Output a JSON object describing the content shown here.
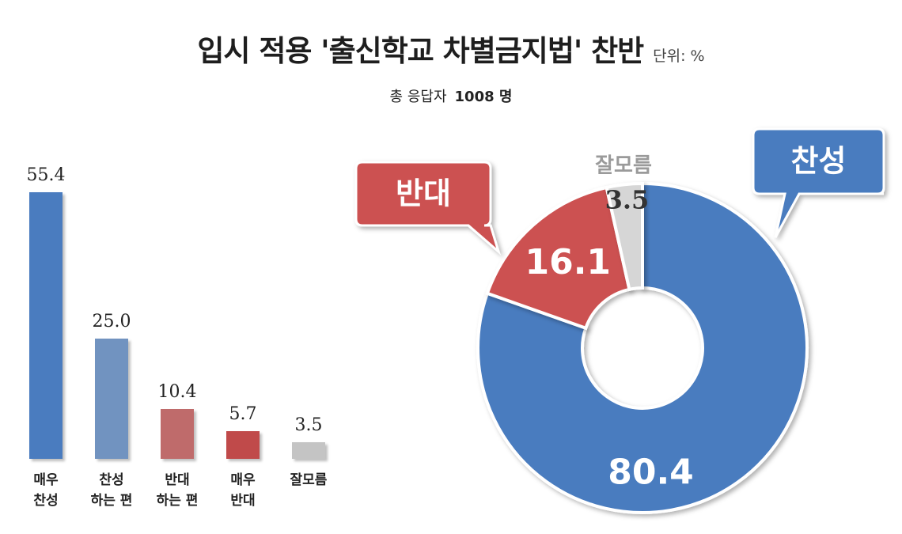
{
  "title": "입시 적용 '출신학교 차별금지법' 찬반",
  "unit": "단위: %",
  "subtitle_prefix": "총 응답자",
  "subtitle_count": "1008 명",
  "colors": {
    "strong_agree": "#4a7cbf",
    "agree": "#7193c0",
    "disagree": "#bf6b6b",
    "strong_disagree": "#c04a4a",
    "unknown": "#c4c4c4",
    "donut_agree": "#4a7cbf",
    "donut_disagree": "#cc5151",
    "donut_unknown": "#d6d6d6"
  },
  "chart_data": [
    {
      "type": "bar",
      "categories": [
        "매우\n찬성",
        "찬성\n하는 편",
        "반대\n하는 편",
        "매우\n반대",
        "잘모름"
      ],
      "values": [
        55.4,
        25.0,
        10.4,
        5.7,
        3.5
      ],
      "value_labels": [
        "55.4",
        "25.0",
        "10.4",
        "5.7",
        "3.5"
      ],
      "ylim": [
        0,
        55.4
      ]
    },
    {
      "type": "pie",
      "labels": [
        "찬성",
        "반대",
        "잘모름"
      ],
      "values": [
        80.4,
        16.1,
        3.5
      ],
      "value_labels": [
        "80.4",
        "16.1",
        "3.5"
      ]
    }
  ]
}
